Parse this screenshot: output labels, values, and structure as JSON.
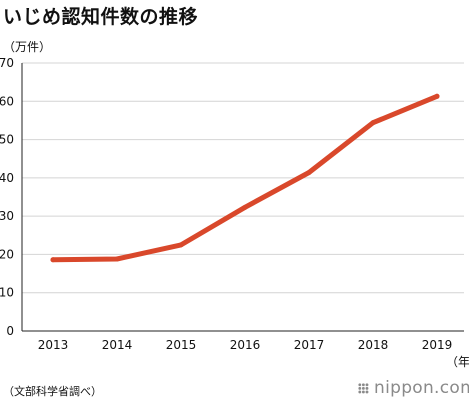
{
  "header": {
    "title": "いじめ認知件数の推移"
  },
  "y_unit_label": "（万件）",
  "x_unit_label": "（年）",
  "source_note": "（文部科学省調べ）",
  "brand": {
    "name": "nippon.com"
  },
  "colors": {
    "line": "#d9482b",
    "grid": "#d4d4d4",
    "axis": "#222222"
  },
  "chart_data": {
    "type": "line",
    "title": "いじめ認知件数の推移",
    "xlabel": "（年）",
    "ylabel": "（万件）",
    "categories": [
      "2013",
      "2014",
      "2015",
      "2016",
      "2017",
      "2018",
      "2019"
    ],
    "series": [
      {
        "values": [
          18.6,
          18.8,
          22.5,
          32.3,
          41.4,
          54.4,
          61.3
        ]
      }
    ],
    "ylim": [
      0,
      70
    ],
    "yticks": [
      0,
      10,
      20,
      30,
      40,
      50,
      60,
      70
    ],
    "grid": true,
    "legend": "none"
  }
}
